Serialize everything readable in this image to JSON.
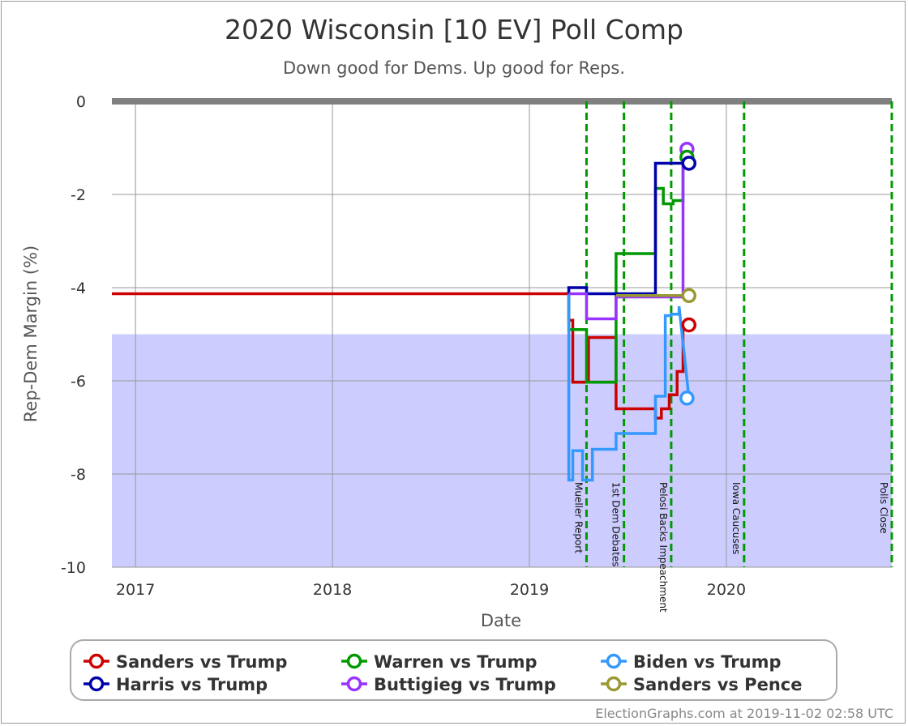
{
  "chart_data": {
    "type": "line",
    "title": "2020 Wisconsin [10 EV] Poll Comp",
    "subtitle": "Down good for Dems. Up good for Reps.",
    "xlabel": "Date",
    "ylabel": "Rep-Dem Margin (%)",
    "credit": "ElectionGraphs.com at 2019-11-02 02:58 UTC",
    "xlim": [
      2016.88,
      2020.84
    ],
    "ylim": [
      -10,
      0
    ],
    "x_ticks": [
      {
        "value": 2017,
        "label": "2017"
      },
      {
        "value": 2018,
        "label": "2018"
      },
      {
        "value": 2019,
        "label": "2019"
      },
      {
        "value": 2020,
        "label": "2020"
      }
    ],
    "y_ticks": [
      {
        "value": 0,
        "label": "0"
      },
      {
        "value": -2,
        "label": "-2"
      },
      {
        "value": -4,
        "label": "-4"
      },
      {
        "value": -6,
        "label": "-6"
      },
      {
        "value": -8,
        "label": "-8"
      },
      {
        "value": -10,
        "label": "-10"
      }
    ],
    "shaded_band": {
      "from": -10,
      "to": -5,
      "color": "#ccccff"
    },
    "zero_line_color": "#808080",
    "grid": true,
    "legend_position": "bottom",
    "events": [
      {
        "x": 2019.29,
        "label": "Mueller Report"
      },
      {
        "x": 2019.48,
        "label": "1st Dem Debates"
      },
      {
        "x": 2019.72,
        "label": "Pelosi Backs Impeachment"
      },
      {
        "x": 2020.09,
        "label": "Iowa Caucuses"
      },
      {
        "x": 2020.84,
        "label": "Polls Close"
      }
    ],
    "series": [
      {
        "name": "Sanders vs Trump",
        "color": "#cc0000",
        "x": [
          2016.88,
          2019.2,
          2019.2,
          2019.22,
          2019.22,
          2019.3,
          2019.3,
          2019.44,
          2019.44,
          2019.64,
          2019.64,
          2019.67,
          2019.67,
          2019.71,
          2019.71,
          2019.75,
          2019.75,
          2019.78,
          2019.78,
          2019.81
        ],
        "y": [
          -4.13,
          -4.13,
          -4.7,
          -4.7,
          -6.03,
          -6.03,
          -5.07,
          -5.07,
          -6.6,
          -6.6,
          -6.8,
          -6.8,
          -6.6,
          -6.6,
          -6.3,
          -6.3,
          -5.8,
          -5.8,
          -4.8,
          -4.8
        ]
      },
      {
        "name": "Warren vs Trump",
        "color": "#009900",
        "x": [
          2019.2,
          2019.2,
          2019.29,
          2019.29,
          2019.44,
          2019.44,
          2019.64,
          2019.64,
          2019.68,
          2019.68,
          2019.73,
          2019.73,
          2019.78,
          2019.78,
          2019.8
        ],
        "y": [
          -4.13,
          -4.9,
          -4.9,
          -6.03,
          -6.03,
          -3.27,
          -3.27,
          -1.87,
          -1.87,
          -2.2,
          -2.2,
          -2.13,
          -2.13,
          -1.2,
          -1.2
        ]
      },
      {
        "name": "Biden vs Trump",
        "color": "#3399ff",
        "x": [
          2019.2,
          2019.2,
          2019.22,
          2019.22,
          2019.27,
          2019.27,
          2019.32,
          2019.32,
          2019.35,
          2019.35,
          2019.44,
          2019.44,
          2019.47,
          2019.47,
          2019.64,
          2019.64,
          2019.69,
          2019.69,
          2019.72,
          2019.72,
          2019.76,
          2019.76,
          2019.81
        ],
        "y": [
          -4.13,
          -8.13,
          -8.13,
          -7.5,
          -7.5,
          -8.13,
          -8.13,
          -7.47,
          -7.47,
          -7.47,
          -7.47,
          -7.13,
          -7.13,
          -7.13,
          -7.13,
          -6.33,
          -6.33,
          -4.6,
          -4.6,
          -4.57,
          -4.57,
          -4.4,
          -6.37
        ]
      },
      {
        "name": "Harris vs Trump",
        "color": "#0000aa",
        "x": [
          2019.2,
          2019.2,
          2019.29,
          2019.29,
          2019.64,
          2019.64,
          2019.76,
          2019.76,
          2019.81
        ],
        "y": [
          -4.13,
          -4.0,
          -4.0,
          -4.13,
          -4.13,
          -1.33,
          -1.33,
          -1.33,
          -1.33
        ]
      },
      {
        "name": "Buttigieg vs Trump",
        "color": "#9933ff",
        "x": [
          2019.2,
          2019.2,
          2019.29,
          2019.29,
          2019.44,
          2019.44,
          2019.78,
          2019.78,
          2019.8
        ],
        "y": [
          -4.13,
          -4.13,
          -4.13,
          -4.67,
          -4.67,
          -4.2,
          -4.2,
          -1.03,
          -1.03
        ]
      },
      {
        "name": "Sanders vs Pence",
        "color": "#999933",
        "x": [
          2019.44,
          2019.8
        ],
        "y": [
          -4.17,
          -4.17
        ]
      }
    ],
    "end_markers": [
      {
        "series": "Buttigieg vs Trump",
        "x": 2019.8,
        "y": -1.03
      },
      {
        "series": "Warren vs Trump",
        "x": 2019.8,
        "y": -1.2
      },
      {
        "series": "Harris vs Trump",
        "x": 2019.81,
        "y": -1.33
      },
      {
        "series": "Sanders vs Pence",
        "x": 2019.81,
        "y": -4.17
      },
      {
        "series": "Sanders vs Trump",
        "x": 2019.81,
        "y": -4.8
      },
      {
        "series": "Biden vs Trump",
        "x": 2019.8,
        "y": -6.37
      }
    ],
    "legend_order": [
      "Sanders vs Trump",
      "Warren vs Trump",
      "Biden vs Trump",
      "Harris vs Trump",
      "Buttigieg vs Trump",
      "Sanders vs Pence"
    ]
  }
}
